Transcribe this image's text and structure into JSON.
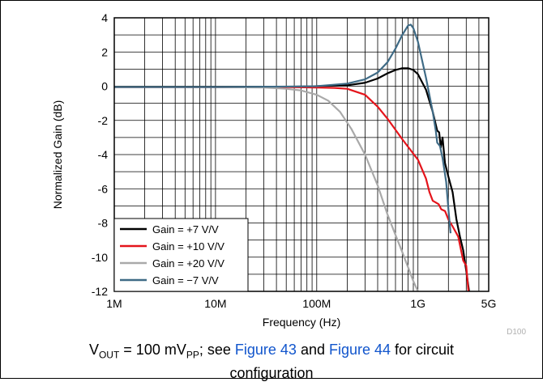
{
  "chart_data": {
    "type": "line",
    "xlabel": "Frequency (Hz)",
    "ylabel": "Normalized Gain (dB)",
    "x_scale": "log",
    "xlim": [
      1000000,
      5000000000
    ],
    "ylim": [
      -12,
      4
    ],
    "grid": true,
    "legend_position": "bottom-left",
    "x_ticks": [
      {
        "value": 1000000,
        "label": "1M"
      },
      {
        "value": 10000000,
        "label": "10M"
      },
      {
        "value": 100000000,
        "label": "100M"
      },
      {
        "value": 1000000000,
        "label": "1G"
      },
      {
        "value": 5000000000,
        "label": "5G"
      }
    ],
    "y_ticks": [
      {
        "value": 4,
        "label": "4"
      },
      {
        "value": 2,
        "label": "2"
      },
      {
        "value": 0,
        "label": "0"
      },
      {
        "value": -2,
        "label": "-2"
      },
      {
        "value": -4,
        "label": "-4"
      },
      {
        "value": -6,
        "label": "-6"
      },
      {
        "value": -8,
        "label": "-8"
      },
      {
        "value": -10,
        "label": "-10"
      },
      {
        "value": -12,
        "label": "-12"
      }
    ],
    "watermark": "D100",
    "series": [
      {
        "name": "Gain = +7 V/V",
        "color": "#000000",
        "points": [
          [
            1000000,
            -0.05
          ],
          [
            10000000,
            -0.05
          ],
          [
            50000000,
            -0.04
          ],
          [
            100000000,
            0
          ],
          [
            200000000,
            0.05
          ],
          [
            300000000,
            0.2
          ],
          [
            400000000,
            0.45
          ],
          [
            500000000,
            0.75
          ],
          [
            600000000,
            0.95
          ],
          [
            700000000,
            1.05
          ],
          [
            800000000,
            1.05
          ],
          [
            900000000,
            0.95
          ],
          [
            1000000000,
            0.7
          ],
          [
            1200000000,
            -0.2
          ],
          [
            1400000000,
            -1.5
          ],
          [
            1550000000,
            -2.6
          ],
          [
            1620000000,
            -2.7
          ],
          [
            1680000000,
            -3.6
          ],
          [
            1750000000,
            -3.0
          ],
          [
            1850000000,
            -4.5
          ],
          [
            2000000000,
            -5.3
          ],
          [
            2200000000,
            -6.2
          ],
          [
            2400000000,
            -7.8
          ],
          [
            2600000000,
            -8.8
          ],
          [
            2800000000,
            -9.6
          ],
          [
            3000000000,
            -10.8
          ],
          [
            3200000000,
            -12.0
          ]
        ]
      },
      {
        "name": "Gain = +10 V/V",
        "color": "#e4141b",
        "points": [
          [
            1000000,
            -0.05
          ],
          [
            10000000,
            -0.05
          ],
          [
            50000000,
            -0.05
          ],
          [
            100000000,
            -0.08
          ],
          [
            150000000,
            -0.1
          ],
          [
            200000000,
            -0.15
          ],
          [
            300000000,
            -0.5
          ],
          [
            400000000,
            -1.2
          ],
          [
            500000000,
            -1.9
          ],
          [
            700000000,
            -3.1
          ],
          [
            1000000000,
            -4.3
          ],
          [
            1200000000,
            -5.4
          ],
          [
            1300000000,
            -6.2
          ],
          [
            1400000000,
            -6.7
          ],
          [
            1500000000,
            -6.8
          ],
          [
            1600000000,
            -6.9
          ],
          [
            1700000000,
            -7.2
          ],
          [
            1850000000,
            -7.3
          ],
          [
            2000000000,
            -7.8
          ],
          [
            2200000000,
            -8.2
          ],
          [
            2500000000,
            -8.8
          ],
          [
            2800000000,
            -10.2
          ],
          [
            3000000000,
            -10.5
          ],
          [
            3150000000,
            -12.0
          ]
        ]
      },
      {
        "name": "Gain = +20 V/V",
        "color": "#a9a9a9",
        "points": [
          [
            1000000,
            -0.05
          ],
          [
            10000000,
            -0.05
          ],
          [
            30000000,
            -0.08
          ],
          [
            50000000,
            -0.15
          ],
          [
            70000000,
            -0.25
          ],
          [
            100000000,
            -0.5
          ],
          [
            130000000,
            -0.85
          ],
          [
            170000000,
            -1.5
          ],
          [
            220000000,
            -2.5
          ],
          [
            300000000,
            -4.0
          ],
          [
            400000000,
            -5.8
          ],
          [
            500000000,
            -7.5
          ],
          [
            600000000,
            -8.7
          ],
          [
            700000000,
            -9.7
          ],
          [
            800000000,
            -10.6
          ],
          [
            900000000,
            -11.4
          ],
          [
            1000000000,
            -12.0
          ]
        ]
      },
      {
        "name": "Gain = −7 V/V",
        "color": "#3f6b86",
        "points": [
          [
            1000000,
            -0.05
          ],
          [
            10000000,
            -0.05
          ],
          [
            50000000,
            -0.02
          ],
          [
            100000000,
            0.0
          ],
          [
            200000000,
            0.15
          ],
          [
            300000000,
            0.4
          ],
          [
            400000000,
            0.8
          ],
          [
            500000000,
            1.4
          ],
          [
            600000000,
            2.2
          ],
          [
            700000000,
            3.0
          ],
          [
            800000000,
            3.55
          ],
          [
            850000000,
            3.6
          ],
          [
            900000000,
            3.4
          ],
          [
            1000000000,
            2.6
          ],
          [
            1200000000,
            0.5
          ],
          [
            1400000000,
            -1.5
          ],
          [
            1500000000,
            -2.6
          ],
          [
            1550000000,
            -3.3
          ],
          [
            1650000000,
            -3.5
          ],
          [
            1750000000,
            -4.2
          ],
          [
            1900000000,
            -5.6
          ],
          [
            2000000000,
            -7.2
          ],
          [
            2100000000,
            -8.6
          ]
        ]
      }
    ]
  },
  "caption": {
    "v": "V",
    "out_sub": "OUT",
    "eq": " = 100 mV",
    "pp_sub": "PP",
    "mid": "; see ",
    "link1": "Figure 43",
    "and": " and ",
    "link2": "Figure 44",
    "end1": " for circuit",
    "line2": "configuration"
  }
}
